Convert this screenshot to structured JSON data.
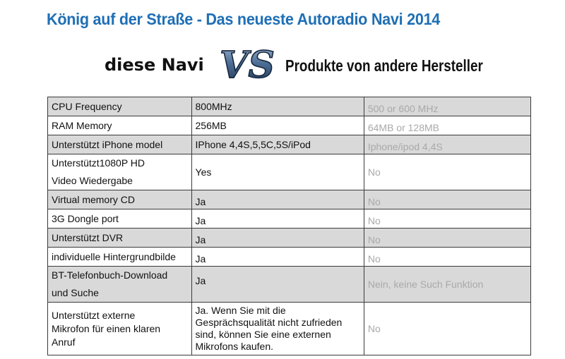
{
  "header": {
    "title": "König auf der Straße - Das neueste Autoradio Navi 2014",
    "left_label": "diese Navi",
    "vs_text": "VS",
    "right_label": "Produkte von andere Hersteller"
  },
  "table": {
    "rows": [
      {
        "feature": "CPU Frequency",
        "this": "800MHz",
        "other": "500 or 600 MHz",
        "shaded": true
      },
      {
        "feature": "RAM Memory",
        "this": "256MB",
        "other": "64MB or 128MB",
        "shaded": false
      },
      {
        "feature": "Unterstützt iPhone model",
        "this": "IPhone 4,4S,5,5C,5S/iPod",
        "other": "Iphone/ipod 4,4S",
        "shaded": true
      },
      {
        "feature_line1": "Unterstützt1080P HD",
        "feature_line2": "Video Wiedergabe",
        "this": "Yes",
        "other": "No",
        "shaded": false
      },
      {
        "feature": "Virtual memory CD",
        "this": "Ja",
        "other": "No",
        "shaded": true
      },
      {
        "feature": "3G Dongle port",
        "this": "Ja",
        "other": "No",
        "shaded": false
      },
      {
        "feature": "Unterstützt DVR",
        "this": "Ja",
        "other": "No",
        "shaded": true
      },
      {
        "feature": "individuelle Hintergrundbilde",
        "this": "Ja",
        "other": "No",
        "shaded": false
      },
      {
        "feature_line1": "BT-Telefonbuch-Download",
        "feature_line2": "und Suche",
        "this": "Ja",
        "other": "Nein, keine Such Funktion",
        "shaded": true
      },
      {
        "feature_line1": "Unterstützt  externe",
        "feature_line2": "Mikrofon für einen klaren",
        "feature_line3": "Anruf",
        "this_line1": "Ja. Wenn Sie  mit  die",
        "this_line2": "Gesprächsqualität nicht zufrieden",
        "this_line3": "sind, können Sie eine externen",
        "this_line4": "Mikrofons  kaufen.",
        "other": "No",
        "shaded": false
      }
    ]
  },
  "colors": {
    "title_blue": "#1f6fb5",
    "row_shade": "#d9d9d9",
    "competitor_text": "#a9a9a9",
    "vs_steel": "#4d6e96"
  },
  "icons": {
    "vs_logo": "vs-logo-icon"
  }
}
